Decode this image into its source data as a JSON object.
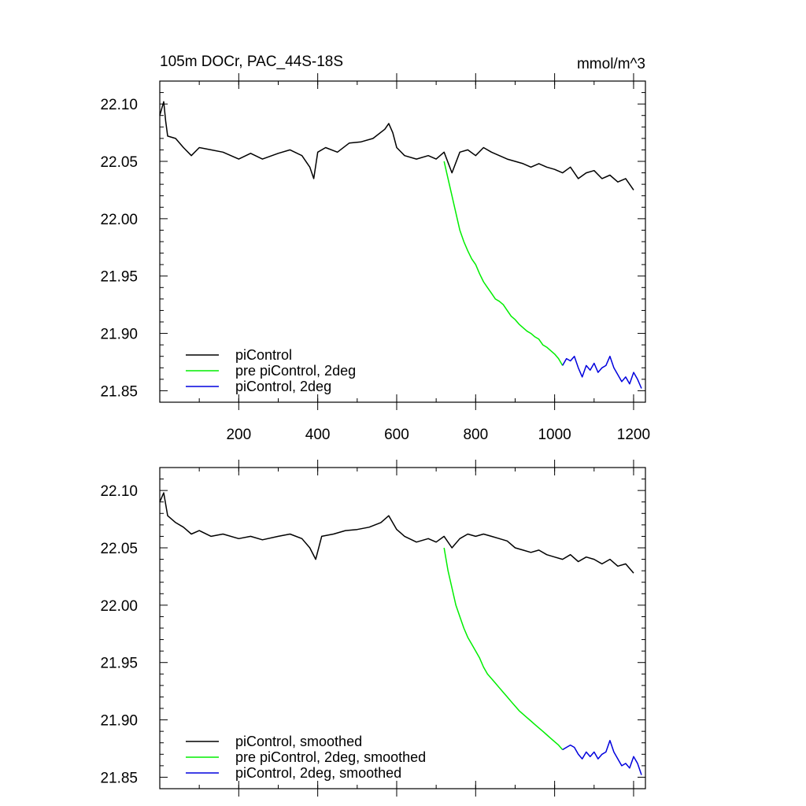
{
  "chart_data": [
    {
      "type": "line",
      "title": "105m DOCr, PAC_44S-18S",
      "units": "mmol/m^3",
      "xlim": [
        0,
        1230
      ],
      "ylim": [
        21.84,
        22.12
      ],
      "xticks": [
        200,
        400,
        600,
        800,
        1000,
        1200
      ],
      "xtick_labels": [
        "200",
        "400",
        "600",
        "800",
        "1000",
        "1200"
      ],
      "yticks": [
        22.1,
        22.05,
        22.0,
        21.95,
        21.9,
        21.85
      ],
      "ytick_labels": [
        "22.10",
        "22.05",
        "22.00",
        "21.95",
        "21.90",
        "21.85"
      ],
      "legend_position": "bottom-left",
      "series": [
        {
          "name": "piControl",
          "color": "#000000",
          "x": [
            0,
            10,
            15,
            20,
            40,
            60,
            80,
            100,
            130,
            160,
            200,
            230,
            260,
            300,
            330,
            360,
            380,
            390,
            400,
            420,
            450,
            480,
            510,
            540,
            570,
            580,
            590,
            600,
            620,
            650,
            680,
            700,
            720,
            740,
            760,
            780,
            800,
            820,
            840,
            860,
            880,
            900,
            920,
            940,
            960,
            980,
            1000,
            1020,
            1040,
            1060,
            1080,
            1100,
            1120,
            1140,
            1160,
            1180,
            1200
          ],
          "y": [
            22.09,
            22.102,
            22.085,
            22.072,
            22.07,
            22.062,
            22.055,
            22.062,
            22.06,
            22.058,
            22.052,
            22.057,
            22.052,
            22.057,
            22.06,
            22.055,
            22.045,
            22.035,
            22.058,
            22.062,
            22.058,
            22.066,
            22.067,
            22.07,
            22.078,
            22.083,
            22.075,
            22.062,
            22.055,
            22.052,
            22.055,
            22.052,
            22.058,
            22.04,
            22.058,
            22.06,
            22.055,
            22.062,
            22.058,
            22.055,
            22.052,
            22.05,
            22.048,
            22.045,
            22.048,
            22.045,
            22.043,
            22.04,
            22.045,
            22.035,
            22.04,
            22.042,
            22.035,
            22.038,
            22.032,
            22.035,
            22.025
          ]
        },
        {
          "name": "pre piControl, 2deg",
          "color": "#00ee00",
          "x": [
            720,
            730,
            740,
            750,
            760,
            770,
            780,
            790,
            800,
            810,
            820,
            830,
            840,
            850,
            860,
            870,
            880,
            890,
            900,
            910,
            920,
            930,
            940,
            950,
            960,
            970,
            980,
            990,
            1000,
            1010,
            1020
          ],
          "y": [
            22.05,
            22.035,
            22.02,
            22.005,
            21.99,
            21.98,
            21.972,
            21.965,
            21.96,
            21.952,
            21.945,
            21.94,
            21.935,
            21.93,
            21.928,
            21.925,
            21.92,
            21.915,
            21.912,
            21.908,
            21.905,
            21.902,
            21.9,
            21.897,
            21.895,
            21.89,
            21.888,
            21.885,
            21.882,
            21.878,
            21.872
          ]
        },
        {
          "name": "piControl, 2deg",
          "color": "#0000dd",
          "x": [
            1020,
            1030,
            1040,
            1050,
            1060,
            1070,
            1080,
            1090,
            1100,
            1110,
            1120,
            1130,
            1140,
            1150,
            1160,
            1170,
            1180,
            1190,
            1200,
            1210,
            1220
          ],
          "y": [
            21.872,
            21.878,
            21.876,
            21.88,
            21.87,
            21.862,
            21.872,
            21.868,
            21.874,
            21.866,
            21.87,
            21.872,
            21.88,
            21.87,
            21.864,
            21.858,
            21.862,
            21.856,
            21.866,
            21.86,
            21.852
          ]
        }
      ]
    },
    {
      "type": "line",
      "title": "",
      "units": "",
      "xlim": [
        0,
        1230
      ],
      "ylim": [
        21.84,
        22.12
      ],
      "xticks": [
        200,
        400,
        600,
        800,
        1000,
        1200
      ],
      "xtick_labels": [],
      "yticks": [
        22.1,
        22.05,
        22.0,
        21.95,
        21.9,
        21.85
      ],
      "ytick_labels": [
        "22.10",
        "22.05",
        "22.00",
        "21.95",
        "21.90",
        "21.85"
      ],
      "legend_position": "bottom-left",
      "series": [
        {
          "name": "piControl, smoothed",
          "color": "#000000",
          "x": [
            0,
            10,
            20,
            40,
            60,
            80,
            100,
            130,
            160,
            200,
            230,
            260,
            300,
            330,
            360,
            380,
            395,
            410,
            440,
            470,
            500,
            530,
            560,
            580,
            600,
            620,
            650,
            680,
            700,
            720,
            740,
            760,
            780,
            800,
            820,
            840,
            860,
            880,
            900,
            920,
            940,
            960,
            980,
            1000,
            1020,
            1040,
            1060,
            1080,
            1100,
            1120,
            1140,
            1160,
            1180,
            1200
          ],
          "y": [
            22.09,
            22.098,
            22.078,
            22.072,
            22.068,
            22.062,
            22.065,
            22.06,
            22.062,
            22.058,
            22.06,
            22.057,
            22.06,
            22.062,
            22.058,
            22.05,
            22.04,
            22.06,
            22.062,
            22.065,
            22.066,
            22.068,
            22.072,
            22.078,
            22.066,
            22.06,
            22.055,
            22.058,
            22.055,
            22.06,
            22.05,
            22.058,
            22.062,
            22.06,
            22.062,
            22.06,
            22.058,
            22.056,
            22.05,
            22.048,
            22.046,
            22.048,
            22.044,
            22.042,
            22.04,
            22.044,
            22.038,
            22.042,
            22.04,
            22.036,
            22.04,
            22.034,
            22.036,
            22.028
          ]
        },
        {
          "name": "pre piControl, 2deg, smoothed",
          "color": "#00ee00",
          "x": [
            720,
            730,
            740,
            750,
            760,
            770,
            780,
            790,
            800,
            810,
            820,
            830,
            840,
            850,
            860,
            870,
            880,
            890,
            900,
            910,
            920,
            930,
            940,
            950,
            960,
            970,
            980,
            990,
            1000,
            1010,
            1020
          ],
          "y": [
            22.05,
            22.03,
            22.015,
            22.0,
            21.99,
            21.98,
            21.972,
            21.966,
            21.96,
            21.954,
            21.946,
            21.94,
            21.936,
            21.932,
            21.928,
            21.924,
            21.92,
            21.916,
            21.912,
            21.908,
            21.905,
            21.902,
            21.899,
            21.896,
            21.893,
            21.89,
            21.887,
            21.884,
            21.881,
            21.878,
            21.874
          ]
        },
        {
          "name": "piControl, 2deg, smoothed",
          "color": "#0000dd",
          "x": [
            1020,
            1030,
            1040,
            1050,
            1060,
            1070,
            1080,
            1090,
            1100,
            1110,
            1120,
            1130,
            1140,
            1150,
            1160,
            1170,
            1180,
            1190,
            1200,
            1210,
            1220
          ],
          "y": [
            21.874,
            21.876,
            21.878,
            21.876,
            21.87,
            21.866,
            21.872,
            21.868,
            21.872,
            21.866,
            21.87,
            21.872,
            21.882,
            21.872,
            21.866,
            21.86,
            21.862,
            21.858,
            21.868,
            21.862,
            21.852
          ]
        }
      ]
    }
  ]
}
